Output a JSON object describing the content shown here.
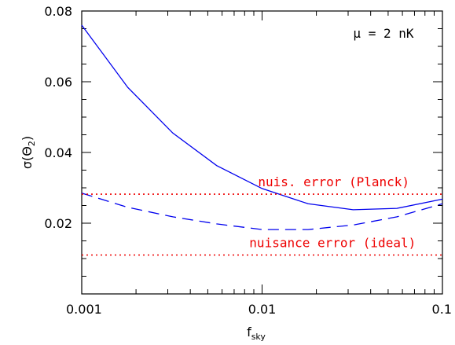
{
  "chart_data": {
    "type": "line",
    "xscale": "log",
    "xlim": [
      0.001,
      0.1
    ],
    "ylim": [
      0.0,
      0.08
    ],
    "xlabel": "f",
    "xlabel_sub": "sky",
    "ylabel": "σ(Θ",
    "ylabel_sub": "2",
    "ylabel_close": ")",
    "x_ticks": [
      {
        "value": 0.001,
        "label": "0.001"
      },
      {
        "value": 0.01,
        "label": "0.01"
      },
      {
        "value": 0.1,
        "label": "0.1"
      }
    ],
    "y_ticks": [
      {
        "value": 0.02,
        "label": "0.02"
      },
      {
        "value": 0.04,
        "label": "0.04"
      },
      {
        "value": 0.06,
        "label": "0.06"
      },
      {
        "value": 0.08,
        "label": "0.08"
      }
    ],
    "series": [
      {
        "style": "solid",
        "color": "#0000ee",
        "x": [
          0.001,
          0.0018,
          0.0032,
          0.0056,
          0.01,
          0.018,
          0.032,
          0.056,
          0.1
        ],
        "y": [
          0.076,
          0.0584,
          0.0455,
          0.0363,
          0.0298,
          0.0255,
          0.0238,
          0.0242,
          0.0268
        ]
      },
      {
        "style": "dashed",
        "color": "#0000ee",
        "x": [
          0.001,
          0.0018,
          0.0032,
          0.0056,
          0.01,
          0.018,
          0.032,
          0.056,
          0.1
        ],
        "y": [
          0.0285,
          0.0245,
          0.0218,
          0.0198,
          0.0182,
          0.0182,
          0.0195,
          0.0218,
          0.0255
        ]
      },
      {
        "style": "dotted",
        "color": "#ee0000",
        "x": [
          0.001,
          0.1
        ],
        "y": [
          0.0282,
          0.0282
        ]
      },
      {
        "style": "dotted",
        "color": "#ee0000",
        "x": [
          0.001,
          0.1
        ],
        "y": [
          0.011,
          0.011
        ]
      }
    ],
    "annotations": [
      {
        "id": "mu",
        "text": "μ = 2 nK",
        "x": 0.032,
        "y": 0.0725,
        "color": "#000000"
      },
      {
        "id": "planck",
        "text": "nuis. error (Planck)",
        "x": 0.0095,
        "y": 0.0304,
        "color": "#ee0000"
      },
      {
        "id": "ideal",
        "text": "nuisance error (ideal)",
        "x": 0.0085,
        "y": 0.0132,
        "color": "#ee0000"
      }
    ]
  }
}
